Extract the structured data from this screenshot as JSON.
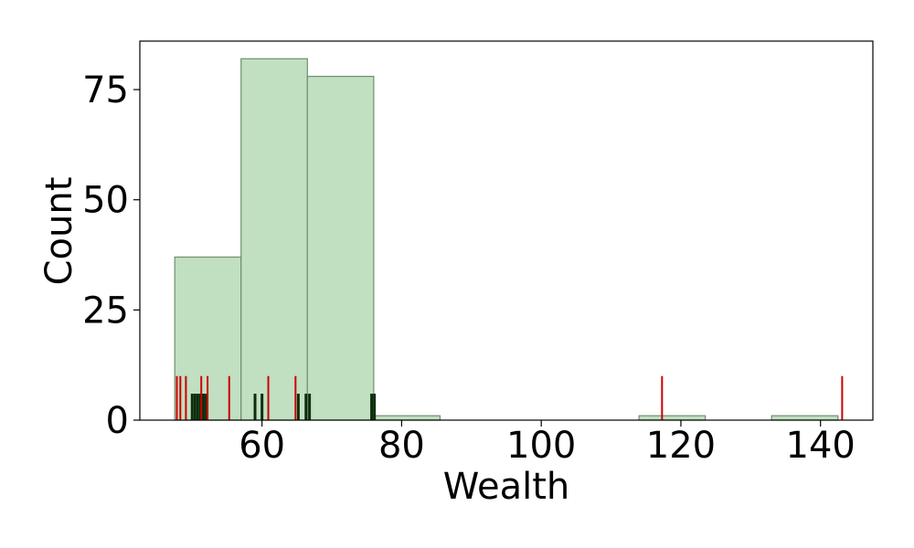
{
  "chart_data": {
    "type": "bar",
    "title": "",
    "xlabel": "Wealth",
    "ylabel": "Count",
    "xlim": [
      42.5,
      147.5
    ],
    "ylim": [
      0,
      86
    ],
    "x_ticks": [
      60,
      80,
      100,
      120,
      140
    ],
    "y_ticks": [
      0,
      25,
      50,
      75
    ],
    "grid": false,
    "bins": [
      {
        "start": 47.5,
        "end": 57.0,
        "count": 37
      },
      {
        "start": 57.0,
        "end": 66.5,
        "count": 82
      },
      {
        "start": 66.5,
        "end": 76.0,
        "count": 78
      },
      {
        "start": 76.0,
        "end": 85.5,
        "count": 1
      },
      {
        "start": 85.5,
        "end": 95.0,
        "count": 0
      },
      {
        "start": 95.0,
        "end": 104.5,
        "count": 0
      },
      {
        "start": 104.5,
        "end": 114.0,
        "count": 0
      },
      {
        "start": 114.0,
        "end": 123.5,
        "count": 1
      },
      {
        "start": 123.5,
        "end": 133.0,
        "count": 0
      },
      {
        "start": 133.0,
        "end": 142.5,
        "count": 1
      }
    ],
    "rug_red": [
      47.8,
      48.3,
      49.1,
      51.3,
      52.2,
      55.3,
      60.9,
      64.8,
      117.3,
      143.1
    ],
    "rug_dark": [
      50.0,
      50.4,
      50.8,
      51.2,
      51.6,
      52.0,
      59.0,
      60.0,
      65.2,
      66.3,
      66.8,
      75.7,
      76.1
    ],
    "colors": {
      "bar_fill": "#c1dfc1",
      "bar_edge": "#6f8f6f",
      "rug_red": "#cc0000",
      "rug_dark": "#0d2e0d"
    }
  }
}
